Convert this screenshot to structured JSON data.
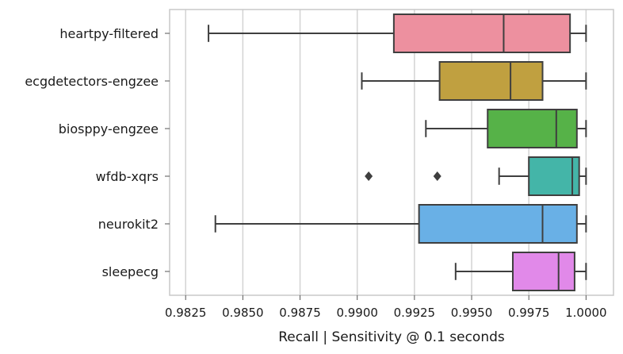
{
  "chart_data": {
    "type": "box",
    "orientation": "horizontal",
    "title": "",
    "xlabel": "Recall | Sensitivity @ 0.1 seconds",
    "ylabel": "",
    "xlim": [
      0.9818,
      1.0012
    ],
    "x_ticks": [
      0.9825,
      0.985,
      0.9875,
      0.99,
      0.9925,
      0.995,
      0.9975,
      1.0
    ],
    "x_tick_labels": [
      "0.9825",
      "0.9850",
      "0.9875",
      "0.9900",
      "0.9925",
      "0.9950",
      "0.9975",
      "1.0000"
    ],
    "grid": "vertical",
    "categories": [
      "heartpy-filtered",
      "ecgdetectors-engzee",
      "biosppy-engzee",
      "wfdb-xqrs",
      "neurokit2",
      "sleepecg"
    ],
    "series": [
      {
        "category": "heartpy-filtered",
        "color": "#ed909f",
        "whisker_low": 0.9835,
        "q1": 0.9916,
        "median": 0.9964,
        "q3": 0.9993,
        "whisker_high": 1.0,
        "outliers": []
      },
      {
        "category": "ecgdetectors-engzee",
        "color": "#c0a040",
        "whisker_low": 0.9902,
        "q1": 0.9936,
        "median": 0.9967,
        "q3": 0.9981,
        "whisker_high": 1.0,
        "outliers": []
      },
      {
        "category": "biosppy-engzee",
        "color": "#56b248",
        "whisker_low": 0.993,
        "q1": 0.9957,
        "median": 0.9987,
        "q3": 0.9996,
        "whisker_high": 1.0,
        "outliers": []
      },
      {
        "category": "wfdb-xqrs",
        "color": "#44b5a8",
        "whisker_low": 0.9962,
        "q1": 0.9975,
        "median": 0.9994,
        "q3": 0.9997,
        "whisker_high": 1.0,
        "outliers": [
          0.9905,
          0.9935
        ]
      },
      {
        "category": "neurokit2",
        "color": "#69b0e6",
        "whisker_low": 0.9838,
        "q1": 0.9927,
        "median": 0.9981,
        "q3": 0.9996,
        "whisker_high": 1.0,
        "outliers": []
      },
      {
        "category": "sleepecg",
        "color": "#e189e9",
        "whisker_low": 0.9943,
        "q1": 0.9968,
        "median": 0.9988,
        "q3": 0.9995,
        "whisker_high": 1.0,
        "outliers": []
      }
    ]
  }
}
